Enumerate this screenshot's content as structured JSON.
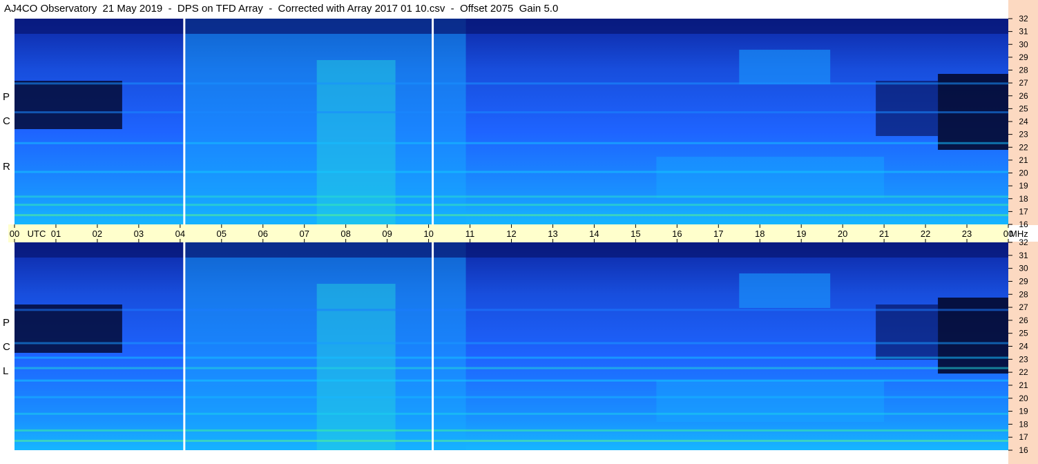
{
  "title": "AJ4CO Observatory  21 May 2019  -  DPS on TFD Array  -  Corrected with Array 2017 01 10.csv  -  Offset 2075  Gain 5.0",
  "colors": {
    "background": "#ffffff",
    "time_bar": "#ffffcc",
    "freq_axis": "#fcd9c1",
    "cmap_low": "#000010",
    "cmap_mid": "#1e64ff",
    "cmap_high": "#e6ff3c"
  },
  "chart_data": [
    {
      "type": "heatmap",
      "panel": "top",
      "polarization_label": [
        "R",
        "C",
        "P"
      ],
      "x": [
        "00",
        "01",
        "02",
        "03",
        "04",
        "05",
        "06",
        "07",
        "08",
        "09",
        "10",
        "11",
        "12",
        "13",
        "14",
        "15",
        "16",
        "17",
        "18",
        "19",
        "20",
        "21",
        "22",
        "23",
        "00"
      ],
      "xlabel_extra": "UTC",
      "y_ticks": [
        32,
        31,
        30,
        29,
        28,
        27,
        26,
        25,
        24,
        23,
        22,
        21,
        20,
        19,
        18,
        17,
        16
      ],
      "ylabel": "MHz",
      "xlim": [
        0,
        24
      ],
      "ylim": [
        16,
        32
      ],
      "data_gaps_utc": [
        4.1,
        10.1
      ],
      "grid": false
    },
    {
      "type": "heatmap",
      "panel": "bottom",
      "polarization_label": [
        "L",
        "C",
        "P"
      ],
      "x": [
        "00",
        "01",
        "02",
        "03",
        "04",
        "05",
        "06",
        "07",
        "08",
        "09",
        "10",
        "11",
        "12",
        "13",
        "14",
        "15",
        "16",
        "17",
        "18",
        "19",
        "20",
        "21",
        "22",
        "23",
        "00"
      ],
      "xlabel_extra": "UTC",
      "y_ticks": [
        32,
        31,
        30,
        29,
        28,
        27,
        26,
        25,
        24,
        23,
        22,
        21,
        20,
        19,
        18,
        17,
        16
      ],
      "ylabel": "MHz",
      "xlim": [
        0,
        24
      ],
      "ylim": [
        16,
        32
      ],
      "data_gaps_utc": [
        4.1,
        10.1
      ],
      "grid": false
    }
  ]
}
